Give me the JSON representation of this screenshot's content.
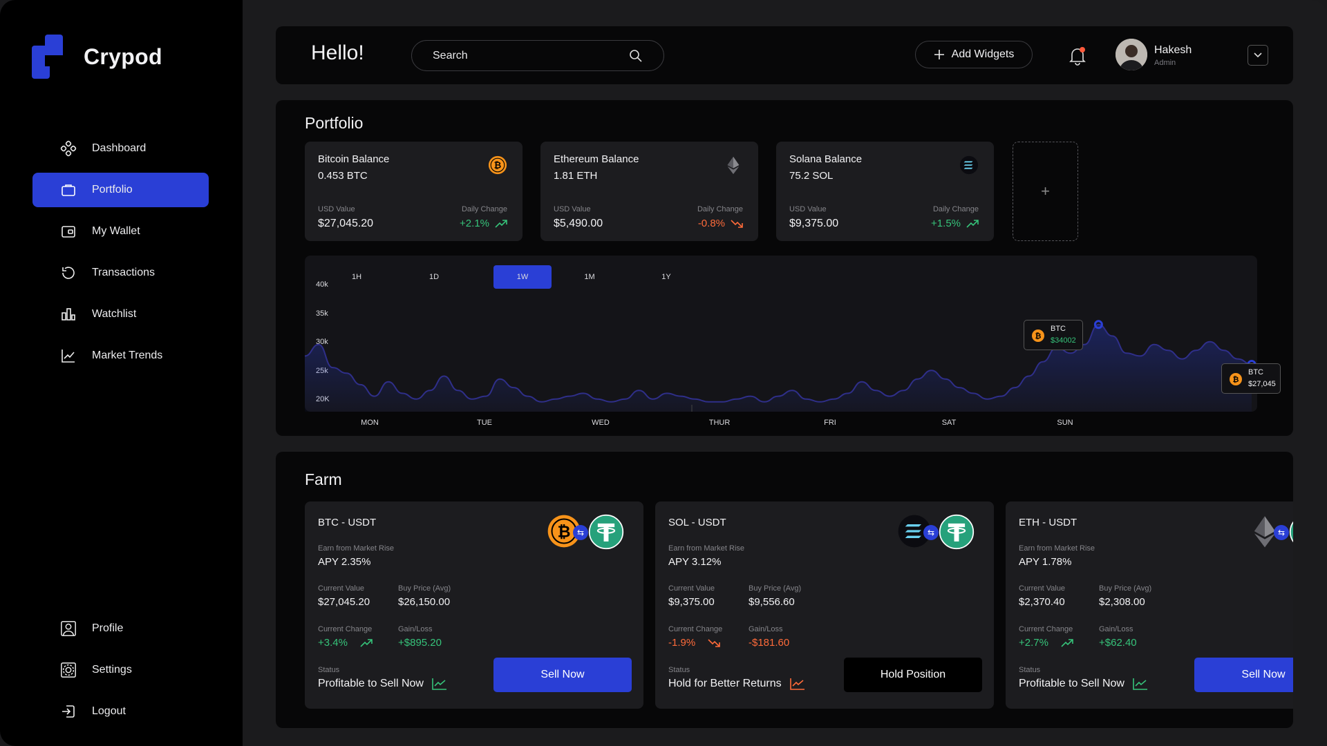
{
  "app": {
    "brand": "Crypod"
  },
  "sidebar": {
    "items": [
      {
        "label": "Dashboard",
        "icon": "dashboard-icon"
      },
      {
        "label": "Portfolio",
        "icon": "briefcase-icon",
        "active": true
      },
      {
        "label": "My Wallet",
        "icon": "wallet-icon"
      },
      {
        "label": "Transactions",
        "icon": "history-icon"
      },
      {
        "label": "Watchlist",
        "icon": "bar-chart-icon"
      },
      {
        "label": "Market Trends",
        "icon": "trend-line-icon"
      }
    ],
    "bottom_items": [
      {
        "label": "Profile",
        "icon": "user-icon"
      },
      {
        "label": "Settings",
        "icon": "gear-icon"
      },
      {
        "label": "Logout",
        "icon": "logout-icon"
      }
    ]
  },
  "header": {
    "greeting": "Hello!",
    "search_placeholder": "Search",
    "add_widgets": "Add Widgets",
    "user": {
      "name": "Hakesh",
      "role": "Admin"
    }
  },
  "portfolio": {
    "title": "Portfolio",
    "balances": [
      {
        "title": "Bitcoin Balance",
        "amount": "0.453 BTC",
        "usd_label": "USD Value",
        "usd": "$27,045.20",
        "change_label": "Daily Change",
        "change": "+2.1%",
        "direction": "up",
        "coin": "btc"
      },
      {
        "title": "Ethereum Balance",
        "amount": "1.81 ETH",
        "usd_label": "USD Value",
        "usd": "$5,490.00",
        "change_label": "Daily Change",
        "change": "-0.8%",
        "direction": "down",
        "coin": "eth"
      },
      {
        "title": "Solana Balance",
        "amount": "75.2 SOL",
        "usd_label": "USD Value",
        "usd": "$9,375.00",
        "change_label": "Daily Change",
        "change": "+1.5%",
        "direction": "up",
        "coin": "sol"
      }
    ],
    "add_card_symbol": "+"
  },
  "chart_data": {
    "type": "area",
    "range_tabs": [
      "1H",
      "1D",
      "1W",
      "1M",
      "1Y"
    ],
    "active_range": "1W",
    "y_ticks": [
      "40k",
      "35k",
      "30k",
      "25k",
      "20K"
    ],
    "ylim": [
      20000,
      40000
    ],
    "x_labels": [
      "MON",
      "TUE",
      "WED",
      "THUR",
      "FRI",
      "SAT",
      "SUN"
    ],
    "series": [
      {
        "values": [
          28500,
          30500,
          26500,
          25500,
          23500,
          21500,
          24000,
          22000,
          21000,
          22500,
          25000,
          22500,
          21000,
          21500,
          24500,
          23000,
          21500,
          20500,
          21000,
          21500,
          22000,
          21000,
          20500,
          21000,
          22500,
          21000,
          22000,
          21500,
          21000,
          20500,
          20500,
          21000,
          21500,
          20500,
          21500,
          22500,
          21000,
          20500,
          21000,
          22000,
          24000,
          22500,
          21500,
          22500,
          24500,
          26000,
          24500,
          23000,
          22000,
          21000,
          21500,
          23000,
          25000,
          27500,
          30000,
          29000,
          30500,
          34000,
          32000,
          29000,
          28500,
          30500,
          29500,
          28000,
          29500,
          31000,
          29500,
          28000,
          27045
        ]
      }
    ],
    "annotations": [
      {
        "label": "BTC",
        "value": "$34002"
      },
      {
        "label": "BTC",
        "value": "$27,045"
      }
    ]
  },
  "farm": {
    "title": "Farm",
    "cards": [
      {
        "pair": "BTC - USDT",
        "earn_label": "Earn from Market Rise",
        "apy": "APY 2.35%",
        "cv_label": "Current Value",
        "cv": "$27,045.20",
        "bp_label": "Buy Price (Avg)",
        "bp": "$26,150.00",
        "cc_label": "Current Change",
        "cc": "+3.4%",
        "gl_label": "Gain/Loss",
        "gl": "+$895.20",
        "direction": "up",
        "status_label": "Status",
        "status": "Profitable to Sell Now",
        "button": "Sell Now",
        "button_style": "blue",
        "coin": "btc"
      },
      {
        "pair": "SOL - USDT",
        "earn_label": "Earn from Market Rise",
        "apy": "APY 3.12%",
        "cv_label": "Current Value",
        "cv": "$9,375.00",
        "bp_label": "Buy Price (Avg)",
        "bp": "$9,556.60",
        "cc_label": "Current Change",
        "cc": "-1.9%",
        "gl_label": "Gain/Loss",
        "gl": "-$181.60",
        "direction": "down",
        "status_label": "Status",
        "status": "Hold for Better Returns",
        "button": "Hold Position",
        "button_style": "dark",
        "coin": "sol"
      },
      {
        "pair": "ETH - USDT",
        "earn_label": "Earn from Market Rise",
        "apy": "APY 1.78%",
        "cv_label": "Current Value",
        "cv": "$2,370.40",
        "bp_label": "Buy Price (Avg)",
        "bp": "$2,308.00",
        "cc_label": "Current Change",
        "cc": "+2.7%",
        "gl_label": "Gain/Loss",
        "gl": "+$62.40",
        "direction": "up",
        "status_label": "Status",
        "status": "Profitable to Sell Now",
        "button": "Sell Now",
        "button_style": "blue",
        "coin": "eth"
      }
    ]
  },
  "colors": {
    "accent": "#2a3fd6",
    "positive": "#36c37a",
    "negative": "#ff6b3a",
    "btc": "#f7931a",
    "usdt": "#26a17b"
  }
}
